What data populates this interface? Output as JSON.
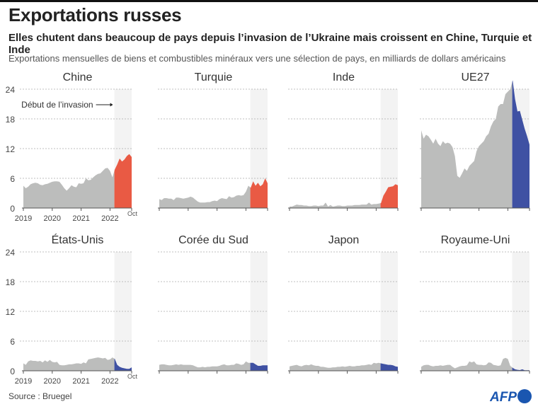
{
  "header": {
    "title": "Exportations russes",
    "subtitle": "Elles chutent dans beaucoup de pays depuis l’invasion de l’Ukraine mais croissent en Chine, Turquie et Inde",
    "description": "Exportations mensuelles de biens et combustibles minéraux vers une sélection de pays, en milliards de dollars américains"
  },
  "footer": {
    "source": "Source : Bruegel",
    "logo_text": "AFP"
  },
  "colors": {
    "pre_invasion": "#bcbdbc",
    "increase": "#e95a44",
    "decrease": "#3f51a3",
    "invasion_band": "#f3f3f3",
    "logo": "#1a56b0"
  },
  "chart_data": {
    "type": "area",
    "layout": "small-multiples 4x2",
    "x_start": "2019-01",
    "x_end": "2022-10",
    "x_frequency": "monthly",
    "x_tick_labels": [
      "2019",
      "2020",
      "2021",
      "2022",
      "Oct"
    ],
    "y_ticks": [
      0,
      6,
      12,
      18,
      24
    ],
    "ylim": [
      0,
      24
    ],
    "grid": true,
    "annotation": {
      "label": "Début de l’invasion",
      "date": "2022-02-24"
    },
    "panels": [
      {
        "name": "Chine",
        "trend": "increase",
        "values": [
          4.5,
          4,
          4.3,
          4.8,
          5,
          5.1,
          5,
          4.7,
          4.6,
          4.8,
          4.9,
          5.1,
          5.3,
          5.4,
          5.4,
          5.3,
          4.7,
          4,
          3.5,
          4,
          4.6,
          4.3,
          4.2,
          5,
          4.9,
          5,
          6,
          5.6,
          5.7,
          6.2,
          6.6,
          6.9,
          7,
          7.5,
          8,
          8.1,
          7.5,
          6.2,
          7.8,
          8.8,
          10,
          9.4,
          9.8,
          10.5,
          10.9,
          10.3
        ]
      },
      {
        "name": "Turquie",
        "trend": "increase",
        "values": [
          1.8,
          1.6,
          2,
          2,
          1.9,
          1.9,
          1.6,
          2.1,
          2.1,
          2,
          1.9,
          2,
          2.1,
          2.3,
          2.1,
          1.7,
          1.3,
          1.1,
          1.1,
          1.1,
          1.2,
          1.2,
          1.4,
          1.5,
          1.4,
          1.8,
          2,
          1.9,
          1.8,
          2.4,
          2.1,
          2.2,
          2.5,
          2.6,
          2.5,
          2.6,
          3.3,
          4.5,
          4.1,
          5.4,
          4.5,
          5.1,
          4.4,
          4.8,
          6.0,
          5.0
        ]
      },
      {
        "name": "Inde",
        "trend": "increase",
        "values": [
          0.3,
          0.3,
          0.5,
          0.7,
          0.6,
          0.6,
          0.5,
          0.5,
          0.4,
          0.4,
          0.5,
          0.5,
          0.4,
          0.5,
          0.5,
          1.1,
          0.3,
          0.6,
          0.3,
          0.4,
          0.5,
          0.5,
          0.4,
          0.4,
          0.5,
          0.5,
          0.5,
          0.6,
          0.6,
          0.6,
          0.7,
          0.7,
          0.7,
          1.1,
          0.7,
          0.8,
          0.8,
          0.9,
          1.0,
          2.5,
          3.3,
          4.2,
          4.3,
          4.4,
          4.8,
          4.6
        ]
      },
      {
        "name": "UE27",
        "trend": "decrease",
        "values": [
          15.7,
          14,
          14.8,
          14.5,
          13.8,
          13,
          14,
          13,
          12.5,
          13.5,
          13,
          13.2,
          13,
          12.3,
          10.5,
          6.5,
          6.1,
          7,
          8,
          7.5,
          8.5,
          9,
          9.5,
          11.5,
          12.5,
          13,
          13.5,
          14.5,
          15,
          16.5,
          17.5,
          18,
          20.5,
          21,
          21,
          23,
          23.5,
          24,
          25.8,
          22,
          19.5,
          19.6,
          17.8,
          16,
          14.5,
          12.8
        ]
      },
      {
        "name": "États-Unis",
        "trend": "decrease",
        "values": [
          1.5,
          1.2,
          1.9,
          2.1,
          2,
          2,
          1.9,
          2,
          1.7,
          2.1,
          1.8,
          2.2,
          1.8,
          1.7,
          1.8,
          1.2,
          1.1,
          1.1,
          1.2,
          1.3,
          1.3,
          1.4,
          1.5,
          1.5,
          1.4,
          1.7,
          1.5,
          2.3,
          2.4,
          2.5,
          2.6,
          2.7,
          2.6,
          2.5,
          2.6,
          2.2,
          2.3,
          2.7,
          2.4,
          1.2,
          0.8,
          0.6,
          0.5,
          0.4,
          0.4,
          0.7
        ]
      },
      {
        "name": "Corée du Sud",
        "trend": "decrease",
        "values": [
          1.2,
          1.3,
          1.3,
          1.2,
          1.1,
          1.1,
          1.2,
          1.3,
          1.2,
          1.3,
          1.2,
          1.2,
          1.2,
          1.2,
          1.1,
          0.9,
          0.7,
          0.7,
          0.8,
          0.7,
          0.8,
          0.8,
          0.9,
          0.9,
          0.9,
          1,
          1.2,
          1.3,
          1.1,
          1.1,
          1.2,
          1.2,
          1.5,
          1.4,
          1.2,
          1.3,
          1.9,
          1.6,
          1.6,
          1.6,
          1.3,
          1,
          1,
          1.1,
          1.1,
          1.1
        ]
      },
      {
        "name": "Japon",
        "trend": "decrease",
        "values": [
          0.9,
          1,
          1.1,
          1.2,
          1,
          0.9,
          1.1,
          1.2,
          1.1,
          1.3,
          1.1,
          1,
          1,
          0.8,
          0.8,
          0.7,
          0.6,
          0.6,
          0.7,
          0.7,
          0.8,
          0.8,
          0.9,
          0.8,
          0.9,
          1,
          0.9,
          0.9,
          1,
          1,
          1.1,
          1.1,
          1.2,
          1.3,
          1.2,
          1.6,
          1.5,
          1.6,
          1.5,
          1.4,
          1.3,
          1.2,
          1.2,
          1.1,
          0.9,
          0.8
        ]
      },
      {
        "name": "Royaume-Uni",
        "trend": "decrease",
        "values": [
          0.8,
          1.1,
          1.2,
          1.2,
          1,
          0.9,
          1,
          1,
          1.1,
          1,
          1.1,
          1.2,
          1.2,
          0.8,
          0.5,
          0.7,
          0.9,
          1,
          1,
          1.1,
          1.9,
          1.7,
          1.9,
          1.3,
          1.2,
          1.2,
          1.1,
          1.2,
          1.7,
          1.6,
          1.2,
          1.1,
          1,
          1.1,
          2.4,
          2.6,
          2.4,
          1,
          0.6,
          0.3,
          0.2,
          0.15,
          0.3,
          0.1,
          0.1,
          0.1
        ]
      }
    ]
  }
}
